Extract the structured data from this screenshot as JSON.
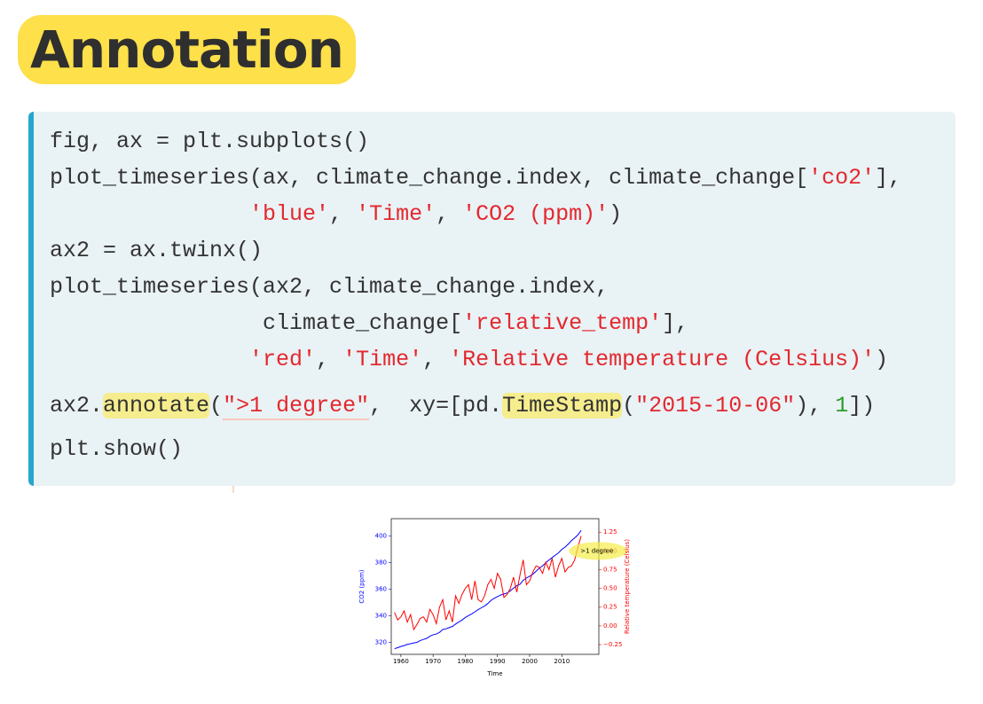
{
  "title": "Annotation",
  "code": {
    "lines": [
      [
        {
          "text": "fig, ax = plt.subplots()",
          "style": "plain"
        }
      ],
      [
        {
          "text": "plot_timeseries(ax, climate_change.index, climate_change[",
          "style": "plain"
        },
        {
          "text": "'co2'",
          "style": "string"
        },
        {
          "text": "],",
          "style": "plain"
        }
      ],
      [
        {
          "text": "'blue'",
          "style": "string"
        },
        {
          "text": ", ",
          "style": "plain"
        },
        {
          "text": "'Time'",
          "style": "string"
        },
        {
          "text": ", ",
          "style": "plain"
        },
        {
          "text": "'CO2 (ppm)'",
          "style": "string"
        },
        {
          "text": ")",
          "style": "plain"
        }
      ],
      [
        {
          "text": "ax2 = ax.twinx()",
          "style": "plain"
        }
      ],
      [
        {
          "text": "plot_timeseries(ax2, climate_change.index,",
          "style": "plain"
        }
      ],
      [
        {
          "text": "climate_change[",
          "style": "plain"
        },
        {
          "text": "'relative_temp'",
          "style": "string"
        },
        {
          "text": "],",
          "style": "plain"
        }
      ],
      [
        {
          "text": "'red'",
          "style": "string"
        },
        {
          "text": ", ",
          "style": "plain"
        },
        {
          "text": "'Time'",
          "style": "string"
        },
        {
          "text": ", ",
          "style": "plain"
        },
        {
          "text": "'Relative temperature (Celsius)'",
          "style": "string"
        },
        {
          "text": ")",
          "style": "plain"
        }
      ],
      [
        {
          "text": "ax2.",
          "style": "plain"
        },
        {
          "text": "annotate",
          "style": "highlight"
        },
        {
          "text": "(",
          "style": "plain"
        },
        {
          "text": "\">1 degree\"",
          "style": "string-underline"
        },
        {
          "text": ",  xy=[pd.",
          "style": "plain"
        },
        {
          "text": "TimeStamp",
          "style": "highlight"
        },
        {
          "text": "(",
          "style": "plain"
        },
        {
          "text": "\"2015-10-06\"",
          "style": "string"
        },
        {
          "text": "), ",
          "style": "plain"
        },
        {
          "text": "1",
          "style": "number"
        },
        {
          "text": "])",
          "style": "plain"
        }
      ],
      [
        {
          "text": "plt.show()",
          "style": "plain"
        }
      ]
    ]
  },
  "chart_data": {
    "type": "line",
    "xlabel": "Time",
    "ylabel": "CO2 (ppm)",
    "y2label": "Relative temperature (Celsius)",
    "x": [
      1958,
      1959,
      1960,
      1961,
      1962,
      1963,
      1964,
      1965,
      1966,
      1967,
      1968,
      1969,
      1970,
      1971,
      1972,
      1973,
      1974,
      1975,
      1976,
      1977,
      1978,
      1979,
      1980,
      1981,
      1982,
      1983,
      1984,
      1985,
      1986,
      1987,
      1988,
      1989,
      1990,
      1991,
      1992,
      1993,
      1994,
      1995,
      1996,
      1997,
      1998,
      1999,
      2000,
      2001,
      2002,
      2003,
      2004,
      2005,
      2006,
      2007,
      2008,
      2009,
      2010,
      2011,
      2012,
      2013,
      2014,
      2015,
      2016
    ],
    "xlim": [
      1957,
      2021.5
    ],
    "xticks": [
      1960,
      1970,
      1980,
      1990,
      2000,
      2010
    ],
    "ylim": [
      311,
      413
    ],
    "yticks": [
      320,
      340,
      360,
      380,
      400
    ],
    "y2lim": [
      -0.38,
      1.43
    ],
    "y2ticks": [
      {
        "value": -0.25,
        "label": "−0.25"
      },
      {
        "value": 0,
        "label": "0.00"
      },
      0.25,
      {
        "value": 0.5,
        "label": "0.50"
      },
      0.75,
      {
        "value": 1,
        "label": "1.00"
      },
      1.25
    ],
    "series": [
      {
        "name": "co2",
        "color": "#0000ff",
        "values": [
          315.3,
          316.0,
          316.9,
          317.6,
          318.5,
          319.0,
          319.6,
          320.0,
          321.4,
          322.2,
          323.0,
          324.6,
          325.7,
          326.3,
          327.5,
          329.7,
          330.2,
          331.1,
          332.0,
          333.8,
          335.4,
          336.8,
          338.7,
          340.1,
          341.4,
          343.0,
          344.6,
          346.0,
          347.4,
          349.2,
          351.6,
          353.1,
          354.4,
          355.6,
          356.4,
          357.1,
          358.8,
          360.8,
          362.6,
          363.7,
          366.7,
          368.4,
          369.7,
          371.3,
          373.5,
          375.8,
          377.5,
          379.8,
          381.9,
          383.8,
          385.6,
          387.4,
          389.9,
          391.6,
          393.9,
          396.5,
          398.6,
          400.8,
          404.2
        ]
      },
      {
        "name": "relative_temp",
        "color": "#ff0000",
        "axis": "y2",
        "values": [
          0.18,
          0.08,
          0.12,
          0.2,
          0.05,
          0.15,
          -0.05,
          0.02,
          0.1,
          0.12,
          0.05,
          0.22,
          0.15,
          0.03,
          0.25,
          0.35,
          0.08,
          0.2,
          0.05,
          0.4,
          0.3,
          0.42,
          0.5,
          0.55,
          0.35,
          0.6,
          0.35,
          0.32,
          0.4,
          0.55,
          0.62,
          0.5,
          0.7,
          0.62,
          0.38,
          0.42,
          0.5,
          0.65,
          0.45,
          0.68,
          0.88,
          0.55,
          0.6,
          0.72,
          0.8,
          0.78,
          0.7,
          0.85,
          0.75,
          0.9,
          0.65,
          0.8,
          0.9,
          0.72,
          0.78,
          0.8,
          0.88,
          1.05,
          1.2
        ]
      }
    ],
    "annotation": {
      "text": ">1 degree",
      "x": 2015.77,
      "y": 1,
      "axis": "y2"
    }
  }
}
